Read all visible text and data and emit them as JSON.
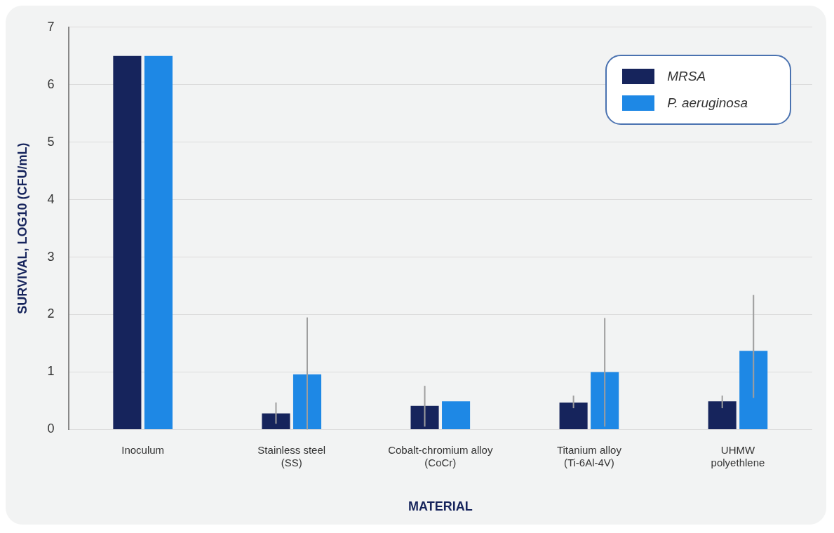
{
  "chart_data": {
    "type": "bar",
    "xlabel": "MATERIAL",
    "ylabel": "SURVIVAL, LOG10 (CFU/mL)",
    "categories": [
      "Inoculum",
      "Stainless steel (SS)",
      "Cobalt-chromium alloy (CoCr)",
      "Titanium alloy (Ti-6Al-4V)",
      "UHMW polyethlene"
    ],
    "series": [
      {
        "name": "MRSA",
        "color": "#16245c",
        "values": [
          6.5,
          0.28,
          0.41,
          0.47,
          0.49
        ],
        "errors": [
          null,
          [
            0.1,
            0.47
          ],
          [
            0.05,
            0.76
          ],
          [
            0.37,
            0.59
          ],
          [
            0.37,
            0.59
          ]
        ]
      },
      {
        "name": "P. aeruginosa",
        "color": "#1e88e5",
        "values": [
          6.5,
          0.96,
          0.49,
          1.0,
          1.37
        ],
        "errors": [
          null,
          [
            0,
            1.95
          ],
          null,
          [
            0.05,
            1.94
          ],
          [
            0.55,
            2.34
          ]
        ]
      }
    ],
    "ylim": [
      0,
      7
    ],
    "yticks": [
      0,
      1,
      2,
      3,
      4,
      5,
      6,
      7
    ],
    "grid": "y",
    "legend": "top right"
  }
}
